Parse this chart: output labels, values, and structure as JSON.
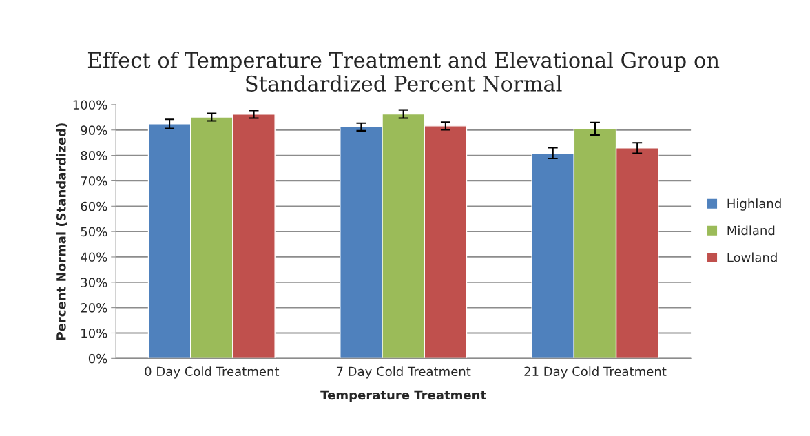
{
  "chart_data": {
    "type": "bar",
    "title": "Effect of Temperature Treatment and Elevational Group on\nStandardized Percent Normal",
    "xlabel": "Temperature Treatment",
    "ylabel": "Percent Normal (Standardized)",
    "categories": [
      "0 Day Cold Treatment",
      "7 Day Cold Treatment",
      "21 Day Cold Treatment"
    ],
    "series": [
      {
        "name": "Highland",
        "color": "#4f81bd",
        "values": [
          92.4,
          91.2,
          80.9
        ],
        "errors": [
          1.8,
          1.5,
          2.1
        ]
      },
      {
        "name": "Midland",
        "color": "#9bbb59",
        "values": [
          95.1,
          96.3,
          90.5
        ],
        "errors": [
          1.5,
          1.6,
          2.5
        ]
      },
      {
        "name": "Lowland",
        "color": "#c0504d",
        "values": [
          96.2,
          91.6,
          82.9
        ],
        "errors": [
          1.5,
          1.5,
          2.1
        ]
      }
    ],
    "ylim": [
      0,
      100
    ],
    "yticks": [
      {
        "value": 0,
        "label": "0%"
      },
      {
        "value": 10,
        "label": "10%"
      },
      {
        "value": 20,
        "label": "20%"
      },
      {
        "value": 30,
        "label": "30%"
      },
      {
        "value": 40,
        "label": "40%"
      },
      {
        "value": 50,
        "label": "50%"
      },
      {
        "value": 60,
        "label": "60%"
      },
      {
        "value": 70,
        "label": "70%"
      },
      {
        "value": 80,
        "label": "80%"
      },
      {
        "value": 90,
        "label": "90%"
      },
      {
        "value": 100,
        "label": "100%"
      }
    ],
    "grid": "y",
    "legend": "right"
  }
}
